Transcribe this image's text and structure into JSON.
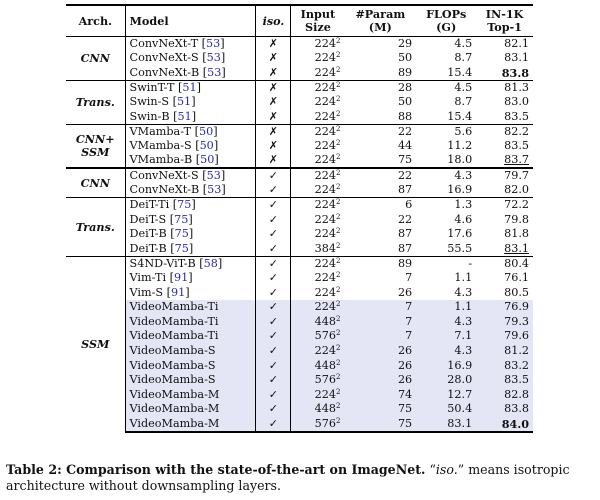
{
  "headers": {
    "arch": "Arch.",
    "model": "Model",
    "iso": "iso.",
    "input_l1": "Input",
    "input_l2": "Size",
    "param_l1": "#Param",
    "param_l2": "(M)",
    "flops_l1": "FLOPs",
    "flops_l2": "(G)",
    "acc_l1": "IN-1K",
    "acc_l2": "Top-1"
  },
  "groups": [
    {
      "arch": "CNN",
      "rows": [
        {
          "name": "ConvNeXt-T",
          "ref": "53",
          "iso": "✗",
          "res": "224",
          "param": "29",
          "flops": "4.5",
          "top1": "82.1"
        },
        {
          "name": "ConvNeXt-S",
          "ref": "53",
          "iso": "✗",
          "res": "224",
          "param": "50",
          "flops": "8.7",
          "top1": "83.1"
        },
        {
          "name": "ConvNeXt-B",
          "ref": "53",
          "iso": "✗",
          "res": "224",
          "param": "89",
          "flops": "15.4",
          "top1": "83.8",
          "top1_style": "bold"
        }
      ]
    },
    {
      "arch": "Trans.",
      "rows": [
        {
          "name": "SwinT-T",
          "ref": "51",
          "iso": "✗",
          "res": "224",
          "param": "28",
          "flops": "4.5",
          "top1": "81.3"
        },
        {
          "name": "Swin-S",
          "ref": "51",
          "iso": "✗",
          "res": "224",
          "param": "50",
          "flops": "8.7",
          "top1": "83.0"
        },
        {
          "name": "Swin-B",
          "ref": "51",
          "iso": "✗",
          "res": "224",
          "param": "88",
          "flops": "15.4",
          "top1": "83.5"
        }
      ]
    },
    {
      "arch": "CNN+",
      "arch2": "SSM",
      "rows": [
        {
          "name": "VMamba-T",
          "ref": "50",
          "iso": "✗",
          "res": "224",
          "param": "22",
          "flops": "5.6",
          "top1": "82.2"
        },
        {
          "name": "VMamba-S",
          "ref": "50",
          "iso": "✗",
          "res": "224",
          "param": "44",
          "flops": "11.2",
          "top1": "83.5"
        },
        {
          "name": "VMamba-B",
          "ref": "50",
          "iso": "✗",
          "res": "224",
          "param": "75",
          "flops": "18.0",
          "top1": "83.7",
          "top1_style": "underline"
        }
      ]
    },
    {
      "arch": "CNN",
      "rows": [
        {
          "name": "ConvNeXt-S",
          "ref": "53",
          "iso": "✓",
          "res": "224",
          "param": "22",
          "flops": "4.3",
          "top1": "79.7"
        },
        {
          "name": "ConvNeXt-B",
          "ref": "53",
          "iso": "✓",
          "res": "224",
          "param": "87",
          "flops": "16.9",
          "top1": "82.0"
        }
      ]
    },
    {
      "arch": "Trans.",
      "rows": [
        {
          "name": "DeiT-Ti",
          "ref": "75",
          "iso": "✓",
          "res": "224",
          "param": "6",
          "flops": "1.3",
          "top1": "72.2"
        },
        {
          "name": "DeiT-S",
          "ref": "75",
          "iso": "✓",
          "res": "224",
          "param": "22",
          "flops": "4.6",
          "top1": "79.8"
        },
        {
          "name": "DeiT-B",
          "ref": "75",
          "iso": "✓",
          "res": "224",
          "param": "87",
          "flops": "17.6",
          "top1": "81.8"
        },
        {
          "name": "DeiT-B",
          "ref": "75",
          "iso": "✓",
          "res": "384",
          "param": "87",
          "flops": "55.5",
          "top1": "83.1",
          "top1_style": "underline"
        }
      ]
    },
    {
      "arch": "SSM",
      "rows": [
        {
          "name": "S4ND-ViT-B",
          "ref": "58",
          "iso": "✓",
          "res": "224",
          "param": "89",
          "flops": "-",
          "top1": "80.4"
        },
        {
          "name": "Vim-Ti",
          "ref": "91",
          "iso": "✓",
          "res": "224",
          "param": "7",
          "flops": "1.1",
          "top1": "76.1"
        },
        {
          "name": "Vim-S",
          "ref": "91",
          "iso": "✓",
          "res": "224",
          "param": "26",
          "flops": "4.3",
          "top1": "80.5"
        },
        {
          "name": "VideoMamba-Ti",
          "iso": "✓",
          "res": "224",
          "param": "7",
          "flops": "1.1",
          "top1": "76.9",
          "hl": true
        },
        {
          "name": "VideoMamba-Ti",
          "iso": "✓",
          "res": "448",
          "param": "7",
          "flops": "4.3",
          "top1": "79.3",
          "hl": true
        },
        {
          "name": "VideoMamba-Ti",
          "iso": "✓",
          "res": "576",
          "param": "7",
          "flops": "7.1",
          "top1": "79.6",
          "hl": true
        },
        {
          "name": "VideoMamba-S",
          "iso": "✓",
          "res": "224",
          "param": "26",
          "flops": "4.3",
          "top1": "81.2",
          "hl": true
        },
        {
          "name": "VideoMamba-S",
          "iso": "✓",
          "res": "448",
          "param": "26",
          "flops": "16.9",
          "top1": "83.2",
          "hl": true
        },
        {
          "name": "VideoMamba-S",
          "iso": "✓",
          "res": "576",
          "param": "26",
          "flops": "28.0",
          "top1": "83.5",
          "hl": true
        },
        {
          "name": "VideoMamba-M",
          "iso": "✓",
          "res": "224",
          "param": "74",
          "flops": "12.7",
          "top1": "82.8",
          "hl": true
        },
        {
          "name": "VideoMamba-M",
          "iso": "✓",
          "res": "448",
          "param": "75",
          "flops": "50.4",
          "top1": "83.8",
          "hl": true
        },
        {
          "name": "VideoMamba-M",
          "iso": "✓",
          "res": "576",
          "param": "75",
          "flops": "83.1",
          "top1": "84.0",
          "top1_style": "bold",
          "hl": true
        }
      ]
    }
  ],
  "exponent": "2",
  "caption": {
    "label": "Table 2: Comparison with the state-of-the-art on ImageNet.",
    "quote_open": "“",
    "term": "iso.",
    "quote_close": "”",
    "rest": " means isotropic architecture without downsampling layers."
  }
}
